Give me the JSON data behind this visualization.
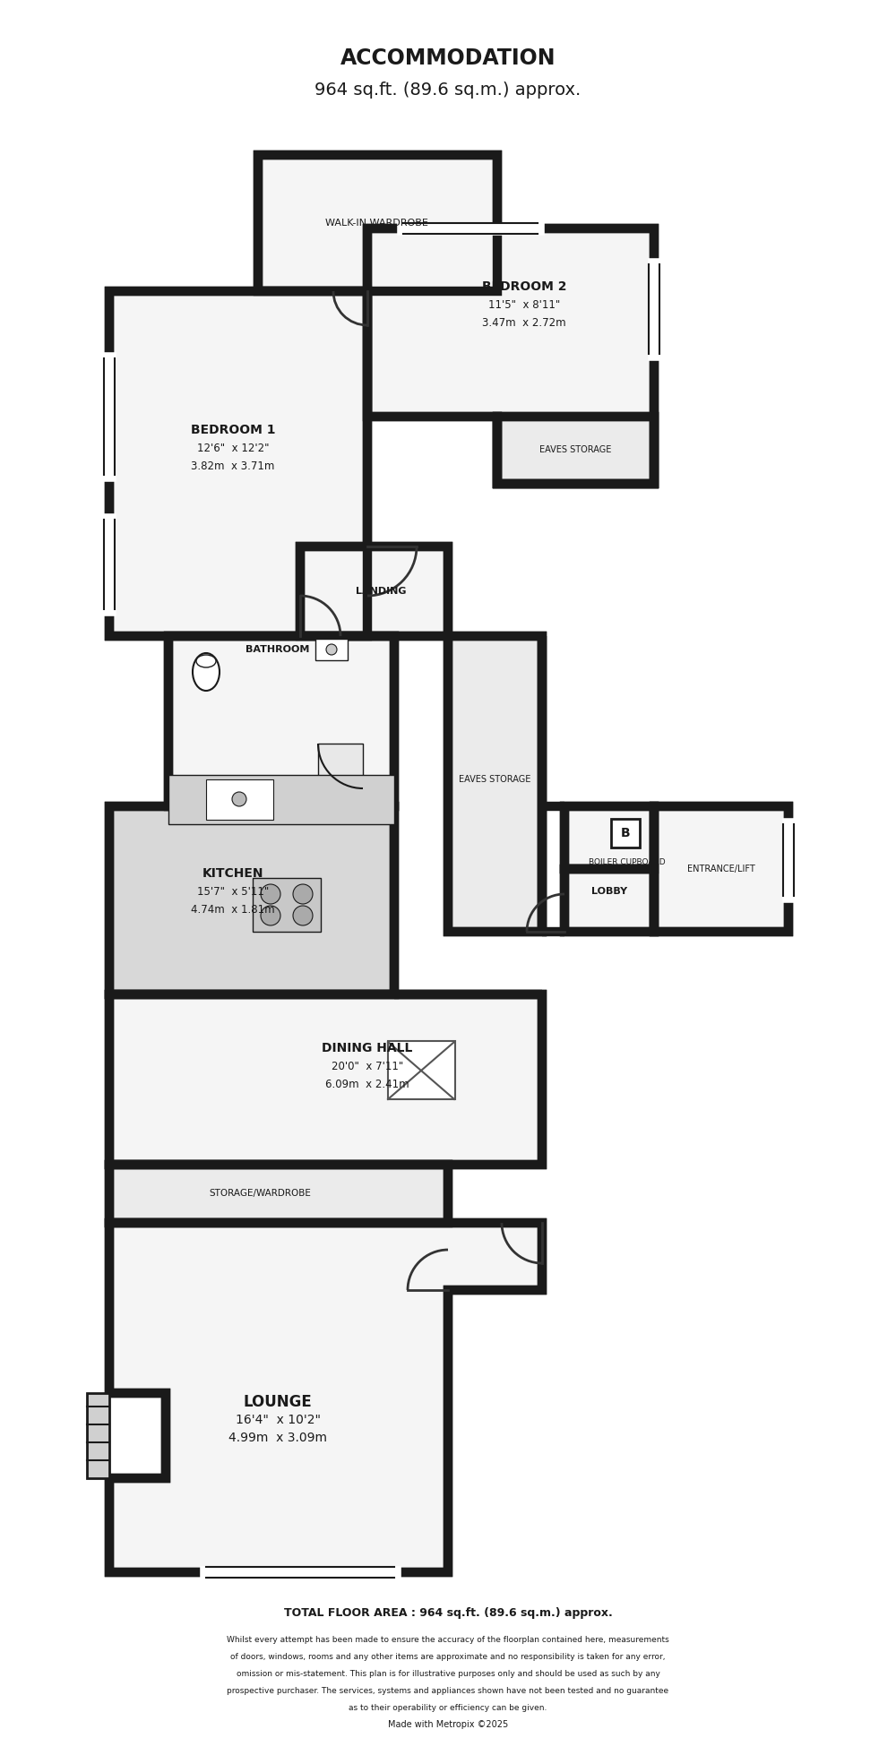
{
  "title_line1": "ACCOMMODATION",
  "title_line2": "964 sq.ft. (89.6 sq.m.) approx.",
  "footer_bold": "TOTAL FLOOR AREA : 964 sq.ft. (89.6 sq.m.) approx.",
  "footer_disclaimer": "Whilst every attempt has been made to ensure the accuracy of the floorplan contained here, measurements\nof doors, windows, rooms and any other items are approximate and no responsibility is taken for any error,\nomission or mis-statement. This plan is for illustrative purposes only and should be used as such by any\nprospective purchaser. The services, systems and appliances shown have not been tested and no guarantee\nas to their operability or efficiency can be given.\nMade with Metropix ©2025",
  "wall_color": "#1a1a1a",
  "bg_color": "#ffffff",
  "floor_light": "#f5f5f5",
  "floor_kitchen": "#d8d8d8",
  "floor_eaves": "#ebebeb",
  "lw_wall": 7.5,
  "lw_inner": 3.0
}
